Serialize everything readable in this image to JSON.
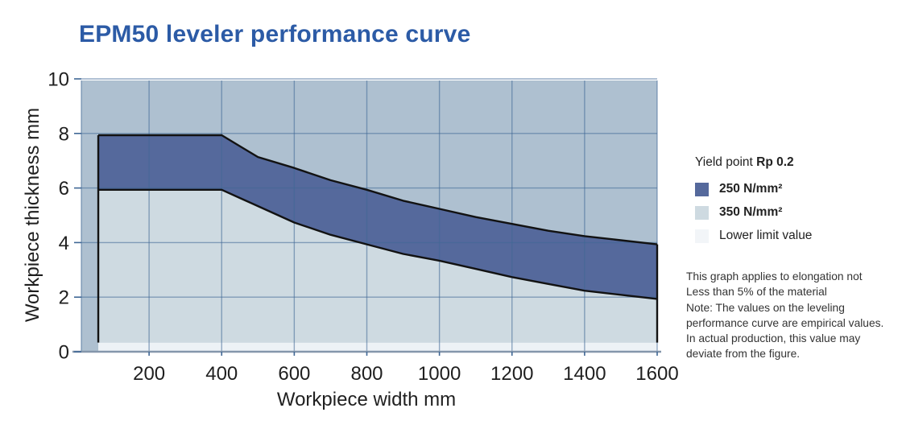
{
  "title": "EPM50 leveler performance curve",
  "chart_data": {
    "type": "area",
    "title": "EPM50 leveler performance curve",
    "xlabel": "Workpiece width mm",
    "ylabel": "Workpiece thickness mm",
    "xlim": [
      0,
      1600
    ],
    "ylim": [
      0,
      10
    ],
    "x_ticks": [
      200,
      400,
      600,
      800,
      1000,
      1200,
      1400,
      1600
    ],
    "y_ticks": [
      0,
      2,
      4,
      6,
      8,
      10
    ],
    "grid": true,
    "legend_position": "right",
    "band_x_start": 60,
    "lower_limit_thickness": 0.4,
    "x": [
      60,
      400,
      450,
      500,
      600,
      700,
      800,
      900,
      1000,
      1100,
      1200,
      1300,
      1400,
      1500,
      1600
    ],
    "series": [
      {
        "name": "250 N/mm² max thickness (upper curve)",
        "y": [
          8,
          8,
          7.6,
          7.2,
          6.8,
          6.35,
          6.0,
          5.6,
          5.3,
          5.0,
          4.75,
          4.5,
          4.3,
          4.15,
          4.0
        ]
      },
      {
        "name": "350 N/mm² max thickness (lower curve)",
        "y": [
          6,
          6,
          5.7,
          5.4,
          4.8,
          4.35,
          4.0,
          3.65,
          3.4,
          3.1,
          2.8,
          2.55,
          2.3,
          2.15,
          2.0
        ]
      }
    ]
  },
  "legend": {
    "title_regular": "Yield point ",
    "title_bold": "Rp 0.2",
    "items": [
      {
        "label": "250 N/mm²",
        "color": "#55699c"
      },
      {
        "label": "350 N/mm²",
        "color": "#cedae1"
      },
      {
        "label": "Lower limit value",
        "color": "#f2f5f8"
      }
    ]
  },
  "notes": "This graph applies to elongation not\nLess than 5% of the material\nNote: The values on the leveling\nperformance curve are empirical values.\nIn actual production, this value may\ndeviate from the figure.",
  "colors": {
    "title": "#2c5ba6",
    "plot_bg": "#aec0d0",
    "band_250": "#55699c",
    "band_350": "#cedae1",
    "lower_limit": "#edf2f6",
    "gridline": "#3f6795",
    "curve_outline": "#121212",
    "axis_line": "#8496ab",
    "tick_text": "#1f1f1f"
  }
}
